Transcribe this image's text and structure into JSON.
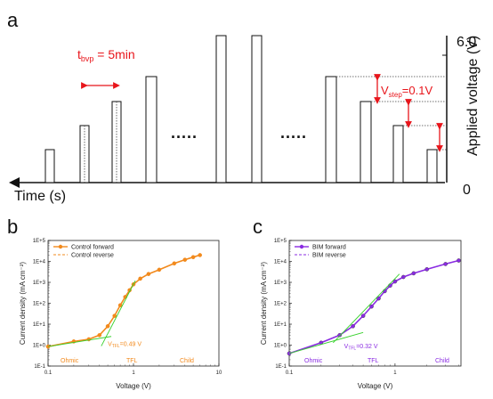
{
  "panel_a": {
    "letter": "a",
    "x_axis_label": "Time (s)",
    "y_axis_label": "Applied voltage (V)",
    "y_top_tick": "6.0",
    "y_bottom_tick": "0",
    "dots": ".....",
    "t_bvp_main": "t",
    "t_bvp_sub": "bvp",
    "t_bvp_value": " = 5min",
    "v_step_main": "V",
    "v_step_sub": "step",
    "v_step_value": "=0.1V",
    "red_color": "#e8151b"
  },
  "chart_data": [
    {
      "panel": "b",
      "type": "scatter",
      "xlabel": "Voltage (V)",
      "ylabel": "Current density (mA cm⁻²)",
      "xscale": "log",
      "yscale": "log",
      "xlim": [
        0.1,
        10
      ],
      "ylim": [
        0.1,
        100000
      ],
      "xticks": [
        "0.1",
        "1",
        "10"
      ],
      "yticks": [
        "1E-1",
        "1E+0",
        "1E+1",
        "1E+2",
        "1E+3",
        "1E+4",
        "1E+5"
      ],
      "legend_position": "top-left",
      "series": [
        {
          "name": "Control forward",
          "style": "line-markers",
          "color": "#f28a1d",
          "x": [
            0.1,
            0.2,
            0.3,
            0.4,
            0.5,
            0.6,
            0.7,
            0.8,
            0.9,
            1.0,
            1.2,
            1.5,
            2.0,
            3.0,
            4.0,
            5.0,
            6.0
          ],
          "y": [
            0.85,
            1.5,
            1.9,
            3,
            8,
            25,
            80,
            200,
            420,
            800,
            1500,
            2500,
            4000,
            8000,
            12000,
            16000,
            20000
          ]
        },
        {
          "name": "Control reverse",
          "style": "dashed",
          "color": "#f28a1d",
          "x": [
            0.1,
            0.2,
            0.3,
            0.4,
            0.5,
            0.6,
            0.7,
            0.8,
            0.9,
            1.0,
            1.2,
            1.5,
            2.0,
            3.0,
            4.0,
            5.0,
            6.0
          ],
          "y": [
            0.85,
            1.5,
            1.9,
            3,
            8,
            25,
            80,
            200,
            420,
            800,
            1500,
            2500,
            4000,
            8000,
            12000,
            16000,
            20000
          ]
        }
      ],
      "annotations": [
        {
          "text_main": "V",
          "text_sub": "TFL",
          "text_value": "=0.49 V",
          "color": "#f28a1d"
        },
        {
          "text": "Ohmic",
          "color": "#f28a1d"
        },
        {
          "text": "TFL",
          "color": "#f28a1d"
        },
        {
          "text": "Child",
          "color": "#f28a1d"
        }
      ],
      "fit_color": "#37d12c"
    },
    {
      "panel": "c",
      "type": "scatter",
      "xlabel": "Voltage (V)",
      "ylabel": "Current density (mA cm⁻²)",
      "xscale": "log",
      "yscale": "log",
      "xlim": [
        0.1,
        4.2
      ],
      "ylim": [
        0.1,
        100000
      ],
      "xticks": [
        "0.1",
        "1"
      ],
      "yticks": [
        "1E-1",
        "1E+0",
        "1E+1",
        "1E+2",
        "1E+3",
        "1E+4",
        "1E+5"
      ],
      "legend_position": "top-left",
      "series": [
        {
          "name": "BIM forward",
          "style": "line-markers",
          "color": "#8a2be2",
          "x": [
            0.1,
            0.2,
            0.3,
            0.4,
            0.5,
            0.6,
            0.7,
            0.8,
            0.9,
            1.0,
            1.2,
            1.5,
            2.0,
            3.0,
            4.0
          ],
          "y": [
            0.4,
            1.3,
            3,
            8,
            25,
            70,
            170,
            380,
            700,
            1100,
            1800,
            2700,
            4200,
            7500,
            11000
          ]
        },
        {
          "name": "BIM reverse",
          "style": "dashed",
          "color": "#8a2be2",
          "x": [
            0.1,
            0.2,
            0.3,
            0.4,
            0.5,
            0.6,
            0.7,
            0.8,
            0.9,
            1.0,
            1.2,
            1.5,
            2.0,
            3.0,
            4.0
          ],
          "y": [
            0.4,
            1.3,
            3,
            8,
            25,
            70,
            170,
            380,
            700,
            1100,
            1800,
            2700,
            4200,
            7500,
            11000
          ]
        }
      ],
      "annotations": [
        {
          "text_main": "V",
          "text_sub": "TFL",
          "text_value": "=0.32 V",
          "color": "#8a2be2"
        },
        {
          "text": "Ohmic",
          "color": "#8a2be2"
        },
        {
          "text": "TFL",
          "color": "#8a2be2"
        },
        {
          "text": "Child",
          "color": "#8a2be2"
        }
      ],
      "fit_color": "#37d12c"
    }
  ]
}
